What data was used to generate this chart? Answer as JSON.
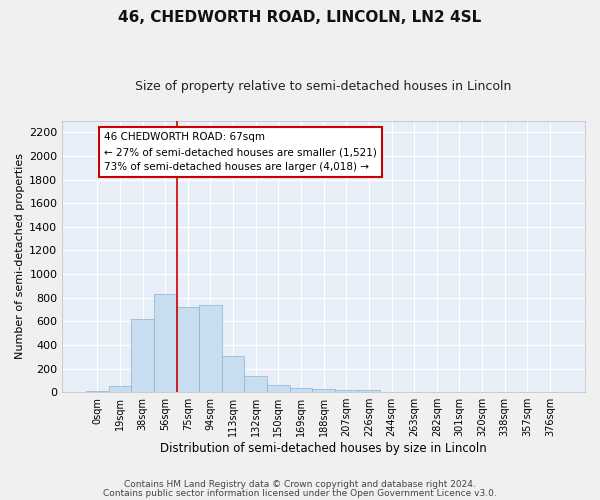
{
  "title": "46, CHEDWORTH ROAD, LINCOLN, LN2 4SL",
  "subtitle": "Size of property relative to semi-detached houses in Lincoln",
  "xlabel": "Distribution of semi-detached houses by size in Lincoln",
  "ylabel": "Number of semi-detached properties",
  "bar_color": "#c8ddf0",
  "bar_edge_color": "#8ab4d4",
  "background_color": "#e8eef8",
  "grid_color": "#ffffff",
  "categories": [
    "0sqm",
    "19sqm",
    "38sqm",
    "56sqm",
    "75sqm",
    "94sqm",
    "113sqm",
    "132sqm",
    "150sqm",
    "169sqm",
    "188sqm",
    "207sqm",
    "226sqm",
    "244sqm",
    "263sqm",
    "282sqm",
    "301sqm",
    "320sqm",
    "338sqm",
    "357sqm",
    "376sqm"
  ],
  "values": [
    10,
    50,
    620,
    830,
    720,
    740,
    305,
    140,
    60,
    35,
    28,
    20,
    18,
    5,
    2,
    1,
    0,
    0,
    0,
    0,
    0
  ],
  "ylim": [
    0,
    2300
  ],
  "yticks": [
    0,
    200,
    400,
    600,
    800,
    1000,
    1200,
    1400,
    1600,
    1800,
    2000,
    2200
  ],
  "annotation_title": "46 CHEDWORTH ROAD: 67sqm",
  "annotation_line1": "← 27% of semi-detached houses are smaller (1,521)",
  "annotation_line2": "73% of semi-detached houses are larger (4,018) →",
  "annotation_box_facecolor": "#ffffff",
  "annotation_box_edgecolor": "#cc0000",
  "vline_color": "#cc0000",
  "vline_x": 3.5,
  "footnote1": "Contains HM Land Registry data © Crown copyright and database right 2024.",
  "footnote2": "Contains public sector information licensed under the Open Government Licence v3.0.",
  "fig_facecolor": "#f0f0f0",
  "title_fontsize": 11,
  "subtitle_fontsize": 9
}
